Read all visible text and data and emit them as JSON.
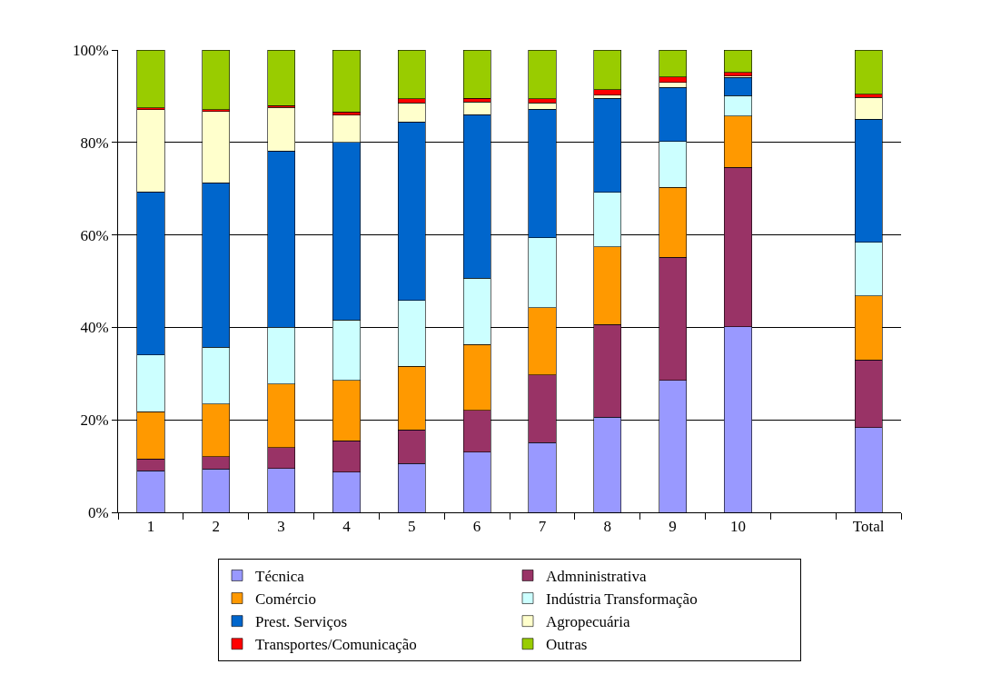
{
  "chart_data": {
    "type": "bar",
    "stacked": true,
    "categories": [
      "1",
      "2",
      "3",
      "4",
      "5",
      "6",
      "7",
      "8",
      "9",
      "10",
      null,
      "Total"
    ],
    "series": [
      {
        "name": "Técnica",
        "color": "#9999ff",
        "values": [
          9,
          9.4,
          9.5,
          8.7,
          10.6,
          13,
          15.1,
          20.6,
          28.5,
          40.1,
          null,
          18.3
        ]
      },
      {
        "name": "Admninistrativa",
        "color": "#993366",
        "values": [
          2.5,
          2.6,
          4.5,
          6.8,
          7.2,
          9.1,
          14.6,
          20,
          26.7,
          34.5,
          null,
          14.7
        ]
      },
      {
        "name": "Comércio",
        "color": "#ff9900",
        "values": [
          10.3,
          11.4,
          13.8,
          13,
          13.8,
          14.2,
          14.6,
          16.8,
          15.1,
          11.1,
          null,
          13.8
        ]
      },
      {
        "name": "Indústria Transformação",
        "color": "#ccffff",
        "values": [
          12.2,
          12.3,
          12.2,
          13.1,
          14.2,
          14.3,
          15.1,
          11.8,
          9.9,
          4.4,
          null,
          11.6
        ]
      },
      {
        "name": "Prest. Serviços",
        "color": "#0066cc",
        "values": [
          35.3,
          35.6,
          38.1,
          38.4,
          38.6,
          35.4,
          27.8,
          20.3,
          11.7,
          4,
          null,
          26.6
        ]
      },
      {
        "name": "Agropecuária",
        "color": "#ffffcc",
        "values": [
          17.8,
          15.4,
          9.5,
          5.9,
          4.2,
          2.8,
          1.4,
          0.7,
          1.1,
          0.3,
          null,
          4.7
        ]
      },
      {
        "name": "Transportes/Comunicação",
        "color": "#ff0000",
        "values": [
          0.4,
          0.4,
          0.4,
          0.7,
          0.8,
          0.7,
          0.8,
          1.2,
          1.2,
          0.7,
          null,
          0.7
        ]
      },
      {
        "name": "Outras",
        "color": "#99cc00",
        "values": [
          12.5,
          12.9,
          12,
          13.4,
          10.6,
          10.5,
          10.6,
          8.6,
          5.8,
          4.9,
          null,
          9.6
        ]
      }
    ],
    "ylim": [
      0,
      100
    ],
    "yticks": [
      {
        "value": 0,
        "label": "0%"
      },
      {
        "value": 20,
        "label": "20%"
      },
      {
        "value": 40,
        "label": "40%"
      },
      {
        "value": 60,
        "label": "60%"
      },
      {
        "value": 80,
        "label": "80%"
      },
      {
        "value": 100,
        "label": "100%"
      }
    ],
    "grid": "y",
    "legend": "bottom"
  }
}
